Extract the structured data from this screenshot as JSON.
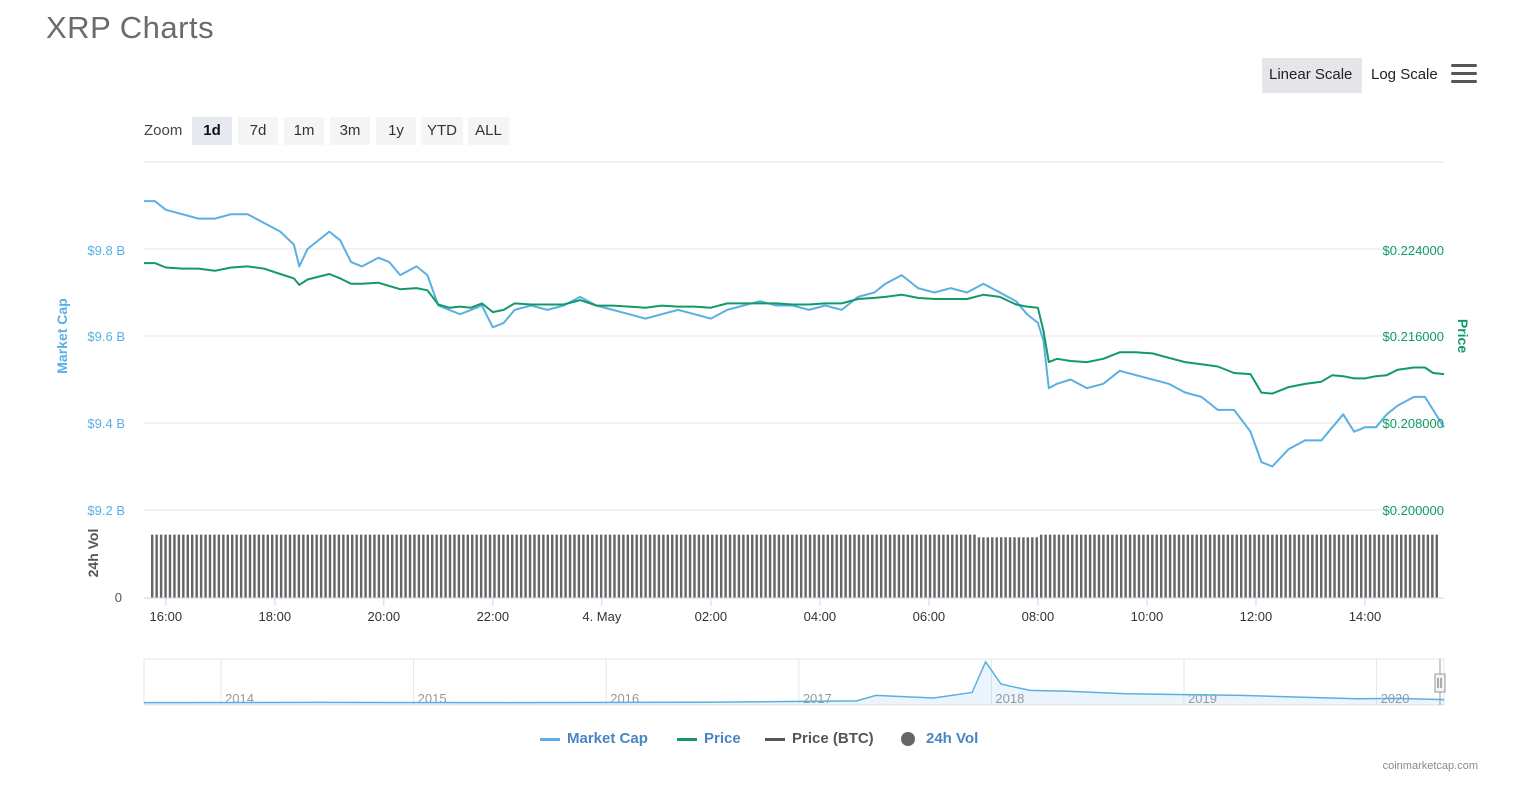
{
  "title": "XRP Charts",
  "scale_options": {
    "linear": "Linear Scale",
    "log": "Log Scale",
    "selected": "Linear Scale"
  },
  "menu_icon": "hamburger-menu-icon",
  "zoom": {
    "label": "Zoom",
    "options": [
      "1d",
      "7d",
      "1m",
      "3m",
      "1y",
      "YTD",
      "ALL"
    ],
    "selected": "1d"
  },
  "colors": {
    "market_cap": "#5ab0e2",
    "price": "#129a66",
    "price_btc": "#555555",
    "volume": "#666666",
    "grid": "#e6e6e6"
  },
  "chart_data": {
    "type": "line",
    "y_left": {
      "label": "Market Cap",
      "ticks": [
        "$9.2 B",
        "$9.4 B",
        "$9.6 B",
        "$9.8 B"
      ],
      "range": [
        9.2,
        10.0
      ],
      "unit": "B USD"
    },
    "y_right": {
      "label": "Price",
      "ticks": [
        "$0.200000",
        "$0.208000",
        "$0.216000",
        "$0.224000"
      ],
      "range": [
        0.2,
        0.232
      ]
    },
    "x_ticks": [
      "16:00",
      "18:00",
      "20:00",
      "22:00",
      "4. May",
      "02:00",
      "04:00",
      "06:00",
      "08:00",
      "10:00",
      "12:00",
      "14:00"
    ],
    "x_tick_hours": [
      16,
      18,
      20,
      22,
      24,
      26,
      28,
      30,
      32,
      34,
      36,
      38
    ],
    "x_range_hours": [
      15.6,
      39.45
    ],
    "series": [
      {
        "name": "Market Cap",
        "axis": "left",
        "points": [
          [
            15.6,
            9.91
          ],
          [
            15.8,
            9.91
          ],
          [
            16.0,
            9.89
          ],
          [
            16.3,
            9.88
          ],
          [
            16.6,
            9.87
          ],
          [
            16.9,
            9.87
          ],
          [
            17.2,
            9.88
          ],
          [
            17.5,
            9.88
          ],
          [
            17.8,
            9.86
          ],
          [
            18.1,
            9.84
          ],
          [
            18.35,
            9.81
          ],
          [
            18.45,
            9.76
          ],
          [
            18.6,
            9.8
          ],
          [
            19.0,
            9.84
          ],
          [
            19.2,
            9.82
          ],
          [
            19.4,
            9.77
          ],
          [
            19.6,
            9.76
          ],
          [
            19.9,
            9.78
          ],
          [
            20.1,
            9.77
          ],
          [
            20.3,
            9.74
          ],
          [
            20.6,
            9.76
          ],
          [
            20.8,
            9.74
          ],
          [
            21.0,
            9.67
          ],
          [
            21.2,
            9.66
          ],
          [
            21.4,
            9.65
          ],
          [
            21.6,
            9.66
          ],
          [
            21.8,
            9.67
          ],
          [
            22.0,
            9.62
          ],
          [
            22.2,
            9.63
          ],
          [
            22.4,
            9.66
          ],
          [
            22.7,
            9.67
          ],
          [
            23.0,
            9.66
          ],
          [
            23.3,
            9.67
          ],
          [
            23.6,
            9.69
          ],
          [
            23.9,
            9.67
          ],
          [
            24.2,
            9.66
          ],
          [
            24.5,
            9.65
          ],
          [
            24.8,
            9.64
          ],
          [
            25.1,
            9.65
          ],
          [
            25.4,
            9.66
          ],
          [
            25.7,
            9.65
          ],
          [
            26.0,
            9.64
          ],
          [
            26.3,
            9.66
          ],
          [
            26.6,
            9.67
          ],
          [
            26.9,
            9.68
          ],
          [
            27.2,
            9.67
          ],
          [
            27.5,
            9.67
          ],
          [
            27.8,
            9.66
          ],
          [
            28.1,
            9.67
          ],
          [
            28.4,
            9.66
          ],
          [
            28.7,
            9.69
          ],
          [
            29.0,
            9.7
          ],
          [
            29.2,
            9.72
          ],
          [
            29.5,
            9.74
          ],
          [
            29.8,
            9.71
          ],
          [
            30.1,
            9.7
          ],
          [
            30.4,
            9.71
          ],
          [
            30.7,
            9.7
          ],
          [
            31.0,
            9.72
          ],
          [
            31.3,
            9.7
          ],
          [
            31.6,
            9.68
          ],
          [
            31.8,
            9.65
          ],
          [
            32.0,
            9.63
          ],
          [
            32.1,
            9.59
          ],
          [
            32.2,
            9.48
          ],
          [
            32.35,
            9.49
          ],
          [
            32.6,
            9.5
          ],
          [
            32.9,
            9.48
          ],
          [
            33.2,
            9.49
          ],
          [
            33.5,
            9.52
          ],
          [
            33.8,
            9.51
          ],
          [
            34.1,
            9.5
          ],
          [
            34.4,
            9.49
          ],
          [
            34.7,
            9.47
          ],
          [
            35.0,
            9.46
          ],
          [
            35.3,
            9.43
          ],
          [
            35.6,
            9.43
          ],
          [
            35.9,
            9.38
          ],
          [
            36.1,
            9.31
          ],
          [
            36.3,
            9.3
          ],
          [
            36.6,
            9.34
          ],
          [
            36.9,
            9.36
          ],
          [
            37.2,
            9.36
          ],
          [
            37.4,
            9.39
          ],
          [
            37.6,
            9.42
          ],
          [
            37.8,
            9.38
          ],
          [
            38.0,
            9.39
          ],
          [
            38.2,
            9.39
          ],
          [
            38.4,
            9.42
          ],
          [
            38.6,
            9.44
          ],
          [
            38.9,
            9.46
          ],
          [
            39.1,
            9.46
          ],
          [
            39.25,
            9.43
          ],
          [
            39.45,
            9.39
          ]
        ]
      },
      {
        "name": "Price",
        "axis": "right",
        "points": [
          [
            15.6,
            0.2227
          ],
          [
            15.8,
            0.2227
          ],
          [
            16.0,
            0.2223
          ],
          [
            16.3,
            0.2222
          ],
          [
            16.6,
            0.2222
          ],
          [
            16.9,
            0.222
          ],
          [
            17.2,
            0.2223
          ],
          [
            17.5,
            0.2224
          ],
          [
            17.8,
            0.2222
          ],
          [
            18.1,
            0.2217
          ],
          [
            18.35,
            0.2213
          ],
          [
            18.45,
            0.2207
          ],
          [
            18.6,
            0.2212
          ],
          [
            19.0,
            0.2217
          ],
          [
            19.2,
            0.2213
          ],
          [
            19.4,
            0.2208
          ],
          [
            19.6,
            0.2208
          ],
          [
            19.9,
            0.2209
          ],
          [
            20.1,
            0.2206
          ],
          [
            20.3,
            0.2203
          ],
          [
            20.6,
            0.2204
          ],
          [
            20.8,
            0.2202
          ],
          [
            21.0,
            0.2189
          ],
          [
            21.2,
            0.2186
          ],
          [
            21.4,
            0.2187
          ],
          [
            21.6,
            0.2186
          ],
          [
            21.8,
            0.219
          ],
          [
            22.0,
            0.2182
          ],
          [
            22.2,
            0.2184
          ],
          [
            22.4,
            0.219
          ],
          [
            22.7,
            0.2189
          ],
          [
            23.0,
            0.2189
          ],
          [
            23.3,
            0.2189
          ],
          [
            23.6,
            0.2193
          ],
          [
            23.9,
            0.2188
          ],
          [
            24.2,
            0.2188
          ],
          [
            24.5,
            0.2187
          ],
          [
            24.8,
            0.2186
          ],
          [
            25.1,
            0.2188
          ],
          [
            25.4,
            0.2187
          ],
          [
            25.7,
            0.2187
          ],
          [
            26.0,
            0.2186
          ],
          [
            26.3,
            0.219
          ],
          [
            26.6,
            0.219
          ],
          [
            26.9,
            0.219
          ],
          [
            27.2,
            0.219
          ],
          [
            27.5,
            0.2189
          ],
          [
            27.8,
            0.2189
          ],
          [
            28.1,
            0.219
          ],
          [
            28.4,
            0.219
          ],
          [
            28.7,
            0.2194
          ],
          [
            29.0,
            0.2195
          ],
          [
            29.2,
            0.2196
          ],
          [
            29.5,
            0.2198
          ],
          [
            29.8,
            0.2195
          ],
          [
            30.1,
            0.2194
          ],
          [
            30.4,
            0.2194
          ],
          [
            30.7,
            0.2194
          ],
          [
            31.0,
            0.2198
          ],
          [
            31.3,
            0.2196
          ],
          [
            31.6,
            0.2189
          ],
          [
            31.8,
            0.2187
          ],
          [
            32.0,
            0.2186
          ],
          [
            32.1,
            0.2165
          ],
          [
            32.2,
            0.2136
          ],
          [
            32.35,
            0.2139
          ],
          [
            32.6,
            0.2137
          ],
          [
            32.9,
            0.2136
          ],
          [
            33.2,
            0.2139
          ],
          [
            33.5,
            0.2145
          ],
          [
            33.8,
            0.2145
          ],
          [
            34.1,
            0.2144
          ],
          [
            34.4,
            0.214
          ],
          [
            34.7,
            0.2136
          ],
          [
            35.0,
            0.2134
          ],
          [
            35.3,
            0.2132
          ],
          [
            35.6,
            0.2126
          ],
          [
            35.9,
            0.2125
          ],
          [
            36.1,
            0.2108
          ],
          [
            36.3,
            0.2107
          ],
          [
            36.6,
            0.2113
          ],
          [
            36.9,
            0.2116
          ],
          [
            37.2,
            0.2118
          ],
          [
            37.4,
            0.2124
          ],
          [
            37.6,
            0.2123
          ],
          [
            37.8,
            0.2121
          ],
          [
            38.0,
            0.2121
          ],
          [
            38.2,
            0.2123
          ],
          [
            38.4,
            0.2124
          ],
          [
            38.6,
            0.2129
          ],
          [
            38.9,
            0.2131
          ],
          [
            39.1,
            0.2131
          ],
          [
            39.25,
            0.2126
          ],
          [
            39.45,
            0.2125
          ]
        ]
      }
    ],
    "volume": {
      "name": "24h Vol",
      "axis_label": "24h Vol",
      "zero_label": "0",
      "bar_count": 290,
      "level_fraction": 0.72
    },
    "navigator": {
      "year_labels": [
        "2014",
        "2015",
        "2016",
        "2017",
        "2018",
        "2019",
        "2020"
      ],
      "x_range_years": [
        2013.6,
        2020.35
      ],
      "year_ticks": [
        2014,
        2015,
        2016,
        2017,
        2018,
        2019,
        2020
      ],
      "points": [
        [
          2013.6,
          0.01
        ],
        [
          2014.5,
          0.015
        ],
        [
          2015.5,
          0.01
        ],
        [
          2016.5,
          0.02
        ],
        [
          2017.3,
          0.05
        ],
        [
          2017.4,
          0.18
        ],
        [
          2017.7,
          0.12
        ],
        [
          2017.9,
          0.25
        ],
        [
          2017.97,
          0.98
        ],
        [
          2018.05,
          0.45
        ],
        [
          2018.2,
          0.3
        ],
        [
          2018.4,
          0.28
        ],
        [
          2018.7,
          0.22
        ],
        [
          2019.0,
          0.2
        ],
        [
          2019.3,
          0.18
        ],
        [
          2019.6,
          0.14
        ],
        [
          2019.9,
          0.1
        ],
        [
          2020.1,
          0.11
        ],
        [
          2020.35,
          0.08
        ]
      ]
    },
    "legend": [
      "Market Cap",
      "Price",
      "Price (BTC)",
      "24h Vol"
    ],
    "legend_placement": "bottom-center",
    "grid": true
  },
  "credit": "coinmarketcap.com"
}
